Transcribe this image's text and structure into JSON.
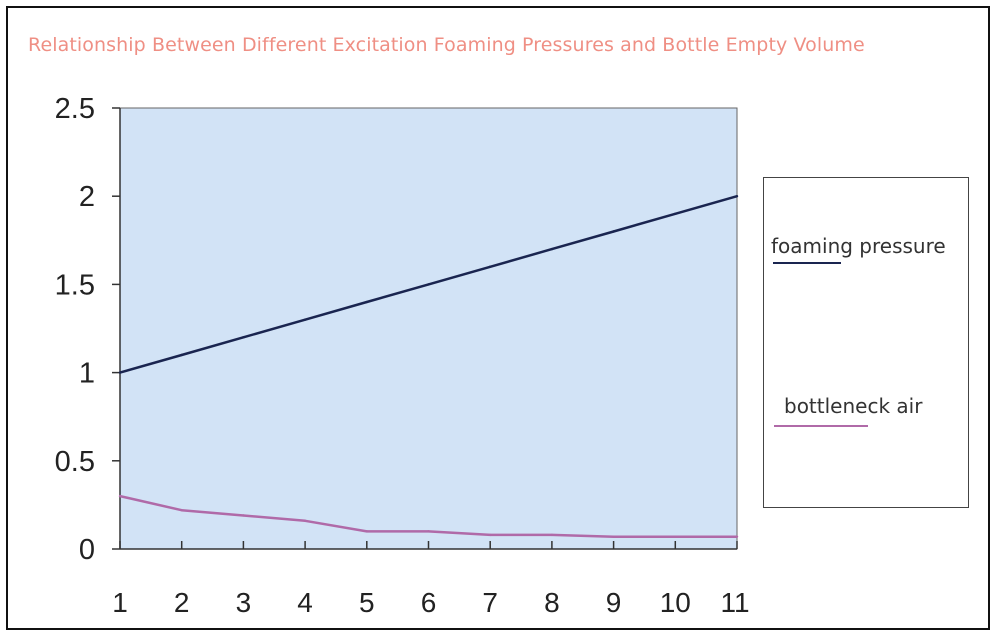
{
  "chart_data": {
    "type": "line",
    "title": "Relationship Between Different Excitation Foaming Pressures and Bottle Empty Volume",
    "xlabel": "",
    "ylabel": "",
    "categories": [
      "1",
      "2",
      "3",
      "4",
      "5",
      "6",
      "7",
      "8",
      "9",
      "10",
      "11"
    ],
    "ylim": [
      0,
      2.5
    ],
    "yticks": [
      "2.5",
      "2",
      "1.5",
      "1",
      "0.5",
      "0"
    ],
    "grid": false,
    "legend_position": "right",
    "series": [
      {
        "name": "foaming pressure",
        "color": "#1a2550",
        "values": [
          1.0,
          1.1,
          1.2,
          1.3,
          1.4,
          1.5,
          1.6,
          1.7,
          1.8,
          1.9,
          2.0
        ]
      },
      {
        "name": "bottleneck air",
        "color": "#b06aa8",
        "values": [
          0.3,
          0.22,
          0.19,
          0.16,
          0.1,
          0.1,
          0.08,
          0.08,
          0.07,
          0.07,
          0.07
        ]
      }
    ],
    "colors": {
      "plot_background": "#d2e3f6",
      "title": "#ef8f84"
    }
  }
}
